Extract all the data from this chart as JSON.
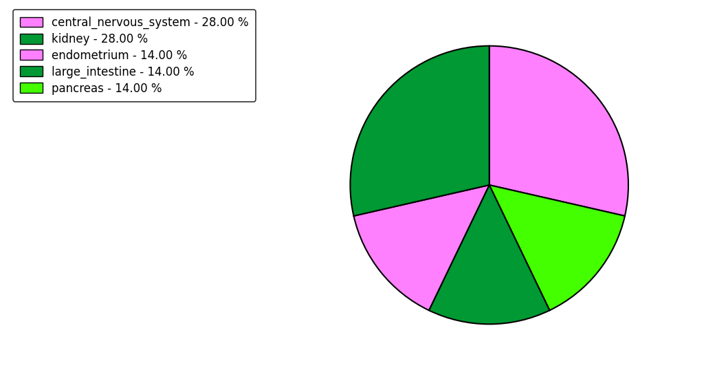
{
  "labels": [
    "central_nervous_system",
    "pancreas",
    "large_intestine",
    "endometrium",
    "kidney"
  ],
  "sizes": [
    28,
    14,
    14,
    14,
    28
  ],
  "colors": [
    "#FF80FF",
    "#44FF00",
    "#009933",
    "#FF80FF",
    "#009933"
  ],
  "legend_labels": [
    "central_nervous_system - 28.00 %",
    "kidney - 28.00 %",
    "endometrium - 14.00 %",
    "large_intestine - 14.00 %",
    "pancreas - 14.00 %"
  ],
  "legend_colors": [
    "#FF80FF",
    "#009933",
    "#FF80FF",
    "#009933",
    "#44FF00"
  ],
  "startangle": 90,
  "figsize": [
    10.24,
    5.38
  ],
  "dpi": 100,
  "background_color": "#FFFFFF",
  "linewidth": 1.5,
  "edgecolor": "#000000",
  "legend_fontsize": 12
}
